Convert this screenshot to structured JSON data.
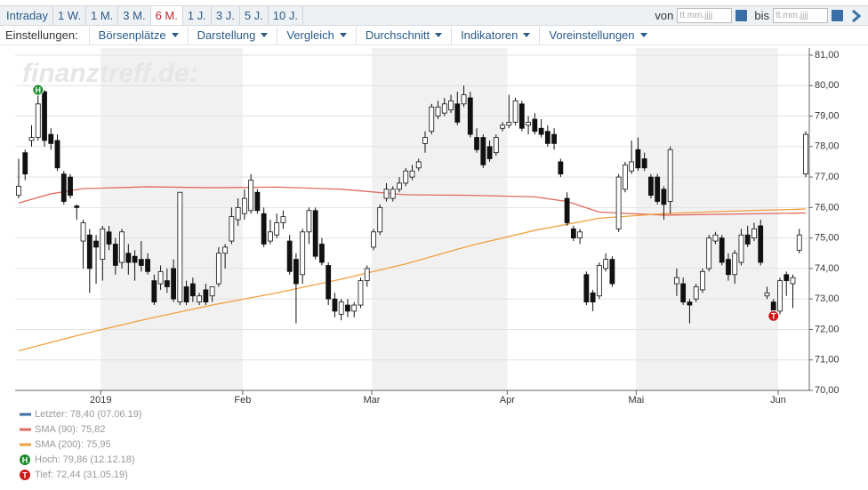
{
  "toolbar": {
    "ranges": [
      "Intraday",
      "1 W.",
      "1 M.",
      "3 M.",
      "6 M.",
      "1 J.",
      "3 J.",
      "5 J.",
      "10 J."
    ],
    "active_range": 4,
    "from_label": "von",
    "to_label": "bis",
    "date_placeholder": "tt.mm.jjjj"
  },
  "menu": {
    "label": "Einstellungen:",
    "items": [
      "Börsenplätze",
      "Darstellung",
      "Vergleich",
      "Durchschnitt",
      "Indikatoren",
      "Voreinstellungen"
    ]
  },
  "chart_data": {
    "type": "candlestick",
    "watermark": "finanztreff.de:",
    "ylim": [
      70,
      81
    ],
    "yticks": [
      {
        "value": 70,
        "label": "70,00"
      },
      {
        "value": 71,
        "label": "71,00"
      },
      {
        "value": 72,
        "label": "72,00"
      },
      {
        "value": 73,
        "label": "73,00"
      },
      {
        "value": 74,
        "label": "74,00"
      },
      {
        "value": 75,
        "label": "75,00"
      },
      {
        "value": 76,
        "label": "76,00"
      },
      {
        "value": 77,
        "label": "77,00"
      },
      {
        "value": 78,
        "label": "78,00"
      },
      {
        "value": 79,
        "label": "79,00"
      },
      {
        "value": 80,
        "label": "80,00"
      },
      {
        "value": 81,
        "label": "81,00"
      }
    ],
    "xlim": [
      0,
      122
    ],
    "xticks": [
      {
        "value": 13,
        "label": "2019"
      },
      {
        "value": 35,
        "label": "Feb"
      },
      {
        "value": 55,
        "label": "Mar"
      },
      {
        "value": 76,
        "label": "Apr"
      },
      {
        "value": 96,
        "label": "Mai"
      },
      {
        "value": 118,
        "label": "Jun"
      }
    ],
    "grid": true,
    "ohlc": [
      [
        76.4,
        77.6,
        76.3,
        76.7
      ],
      [
        77.8,
        77.9,
        76.9,
        77.1
      ],
      [
        78.2,
        78.7,
        78.0,
        78.3
      ],
      [
        78.3,
        79.86,
        78.2,
        79.4
      ],
      [
        79.8,
        79.85,
        78.0,
        78.2
      ],
      [
        78.4,
        78.6,
        77.9,
        78.1
      ],
      [
        78.2,
        78.4,
        77.2,
        77.3
      ],
      [
        77.1,
        77.2,
        76.1,
        76.2
      ],
      [
        77.0,
        77.1,
        76.3,
        76.4
      ],
      [
        76.05,
        76.1,
        75.6,
        76.0
      ],
      [
        74.9,
        75.6,
        74.0,
        75.5
      ],
      [
        75.1,
        75.3,
        73.2,
        74.0
      ],
      [
        74.9,
        75.1,
        73.5,
        74.7
      ],
      [
        74.3,
        75.4,
        73.6,
        75.3
      ],
      [
        75.2,
        75.4,
        74.6,
        74.8
      ],
      [
        74.8,
        75.0,
        73.8,
        74.1
      ],
      [
        74.2,
        75.3,
        74.0,
        75.2
      ],
      [
        74.5,
        74.8,
        73.8,
        74.2
      ],
      [
        74.4,
        74.6,
        73.6,
        74.2
      ],
      [
        74.3,
        74.9,
        73.9,
        74.1
      ],
      [
        74.3,
        74.5,
        73.8,
        73.9
      ],
      [
        73.6,
        73.8,
        72.8,
        72.9
      ],
      [
        73.5,
        74.1,
        73.3,
        73.9
      ],
      [
        73.6,
        74.0,
        73.2,
        73.4
      ],
      [
        74.0,
        74.3,
        72.9,
        73.0
      ],
      [
        72.9,
        76.5,
        72.8,
        76.5
      ],
      [
        73.4,
        73.6,
        72.8,
        72.9
      ],
      [
        73.5,
        73.7,
        72.9,
        73.1
      ],
      [
        72.9,
        73.2,
        72.8,
        73.1
      ],
      [
        73.3,
        73.5,
        72.8,
        72.9
      ],
      [
        73.1,
        73.4,
        72.9,
        73.4
      ],
      [
        73.5,
        74.7,
        73.4,
        74.5
      ],
      [
        74.5,
        74.8,
        74.0,
        74.7
      ],
      [
        74.9,
        76.0,
        74.8,
        75.7
      ],
      [
        75.6,
        76.3,
        75.4,
        76.0
      ],
      [
        75.8,
        76.6,
        75.6,
        76.3
      ],
      [
        75.9,
        77.1,
        75.8,
        76.9
      ],
      [
        76.5,
        76.6,
        75.8,
        75.9
      ],
      [
        75.8,
        76.0,
        74.7,
        74.8
      ],
      [
        74.9,
        75.6,
        74.8,
        75.2
      ],
      [
        75.1,
        75.8,
        75.0,
        75.5
      ],
      [
        75.5,
        75.9,
        75.3,
        75.7
      ],
      [
        74.9,
        75.1,
        73.8,
        73.9
      ],
      [
        74.3,
        74.5,
        72.2,
        73.5
      ],
      [
        73.8,
        75.3,
        73.5,
        75.2
      ],
      [
        75.2,
        76.0,
        74.8,
        75.9
      ],
      [
        75.9,
        76.0,
        74.3,
        74.4
      ],
      [
        74.8,
        75.0,
        74.1,
        74.2
      ],
      [
        74.1,
        74.2,
        72.8,
        73.0
      ],
      [
        73.0,
        73.2,
        72.4,
        72.6
      ],
      [
        72.5,
        73.0,
        72.3,
        72.9
      ],
      [
        72.8,
        73.0,
        72.4,
        72.6
      ],
      [
        72.6,
        72.9,
        72.4,
        72.8
      ],
      [
        72.8,
        73.7,
        72.7,
        73.6
      ],
      [
        73.6,
        74.1,
        73.4,
        74.0
      ],
      [
        74.7,
        75.3,
        74.6,
        75.2
      ],
      [
        75.2,
        76.1,
        75.1,
        76.0
      ],
      [
        76.3,
        76.8,
        76.2,
        76.6
      ],
      [
        76.3,
        76.7,
        76.2,
        76.6
      ],
      [
        76.6,
        77.0,
        76.5,
        76.8
      ],
      [
        76.8,
        77.3,
        76.7,
        77.2
      ],
      [
        77.0,
        77.4,
        76.9,
        77.2
      ],
      [
        77.3,
        77.6,
        77.2,
        77.5
      ],
      [
        78.1,
        78.5,
        77.8,
        78.3
      ],
      [
        78.5,
        79.4,
        78.4,
        79.3
      ],
      [
        79.0,
        79.5,
        78.9,
        79.3
      ],
      [
        79.1,
        79.6,
        79.0,
        79.4
      ],
      [
        79.2,
        79.7,
        79.1,
        79.5
      ],
      [
        79.4,
        79.8,
        78.7,
        78.8
      ],
      [
        79.4,
        80.0,
        79.3,
        79.7
      ],
      [
        79.6,
        79.8,
        78.3,
        78.4
      ],
      [
        78.3,
        78.6,
        77.8,
        77.9
      ],
      [
        78.3,
        78.4,
        77.3,
        77.4
      ],
      [
        78.0,
        78.2,
        77.5,
        77.6
      ],
      [
        77.8,
        78.4,
        77.7,
        78.3
      ],
      [
        78.6,
        78.8,
        78.5,
        78.7
      ],
      [
        78.7,
        79.7,
        78.6,
        78.8
      ],
      [
        78.8,
        79.6,
        78.7,
        79.5
      ],
      [
        79.4,
        79.5,
        78.5,
        78.6
      ],
      [
        78.7,
        79.0,
        78.4,
        78.8
      ],
      [
        78.9,
        79.1,
        78.4,
        78.5
      ],
      [
        78.6,
        78.9,
        78.3,
        78.4
      ],
      [
        78.5,
        78.7,
        78.0,
        78.1
      ],
      [
        78.4,
        78.6,
        77.9,
        78.1
      ],
      [
        77.5,
        77.6,
        77.0,
        77.1
      ],
      [
        76.3,
        76.5,
        75.4,
        75.5
      ],
      [
        75.3,
        75.4,
        74.9,
        75.0
      ],
      [
        75.0,
        75.3,
        74.8,
        75.2
      ],
      [
        73.8,
        73.9,
        72.8,
        72.9
      ],
      [
        73.2,
        73.3,
        72.6,
        72.9
      ],
      [
        73.1,
        74.2,
        73.0,
        74.1
      ],
      [
        74.0,
        74.5,
        73.9,
        74.3
      ],
      [
        74.3,
        74.4,
        73.4,
        73.5
      ],
      [
        75.3,
        77.1,
        75.2,
        77.0
      ],
      [
        76.6,
        77.5,
        76.5,
        77.4
      ],
      [
        77.2,
        78.2,
        77.1,
        77.5
      ],
      [
        77.9,
        78.3,
        77.2,
        77.3
      ],
      [
        77.6,
        77.8,
        77.2,
        77.3
      ],
      [
        77.0,
        77.1,
        76.3,
        76.4
      ],
      [
        77.0,
        77.1,
        76.1,
        76.2
      ],
      [
        76.6,
        76.7,
        75.6,
        76.1
      ],
      [
        76.2,
        78.0,
        75.8,
        77.9
      ],
      [
        73.5,
        74.0,
        73.1,
        73.7
      ],
      [
        73.5,
        73.7,
        72.8,
        72.9
      ],
      [
        72.9,
        73.0,
        72.2,
        72.8
      ],
      [
        73.0,
        73.5,
        72.9,
        73.4
      ],
      [
        73.3,
        74.0,
        73.2,
        73.9
      ],
      [
        74.0,
        75.1,
        73.9,
        75.0
      ],
      [
        74.9,
        75.2,
        74.8,
        75.1
      ],
      [
        75.0,
        75.1,
        74.1,
        74.2
      ],
      [
        74.3,
        74.5,
        73.6,
        73.8
      ],
      [
        73.8,
        74.6,
        73.5,
        74.5
      ],
      [
        74.2,
        75.3,
        74.1,
        75.1
      ],
      [
        75.1,
        75.4,
        74.7,
        74.8
      ],
      [
        75.0,
        75.5,
        74.9,
        75.3
      ],
      [
        75.4,
        75.6,
        74.1,
        74.2
      ],
      [
        73.1,
        73.4,
        73.0,
        73.2
      ],
      [
        72.9,
        73.0,
        72.44,
        72.6
      ],
      [
        72.6,
        73.7,
        72.5,
        73.6
      ],
      [
        73.8,
        73.9,
        73.1,
        73.6
      ],
      [
        73.5,
        73.8,
        72.7,
        73.7
      ],
      [
        74.6,
        75.3,
        74.5,
        75.1
      ],
      [
        77.1,
        78.5,
        77.0,
        78.4
      ]
    ],
    "series": [
      {
        "color": "#e06a60",
        "x": [
          0,
          5,
          10,
          20,
          30,
          40,
          50,
          60,
          70,
          80,
          85,
          90,
          100,
          110,
          122
        ],
        "values": [
          76.15,
          76.45,
          76.62,
          76.68,
          76.65,
          76.67,
          76.6,
          76.42,
          76.4,
          76.35,
          76.2,
          75.85,
          75.75,
          75.78,
          75.82
        ]
      },
      {
        "color": "#f0a040",
        "x": [
          0,
          10,
          20,
          30,
          40,
          50,
          60,
          70,
          80,
          90,
          100,
          110,
          122
        ],
        "values": [
          71.3,
          71.85,
          72.35,
          72.8,
          73.2,
          73.65,
          74.15,
          74.75,
          75.25,
          75.65,
          75.8,
          75.88,
          75.95
        ]
      }
    ],
    "markers": [
      {
        "label": "H",
        "x": 3,
        "value": 79.86,
        "color": "#1e8a2e"
      },
      {
        "label": "T",
        "x": 117,
        "value": 72.44,
        "color": "#d01818"
      }
    ],
    "legend": [
      {
        "text": "Letzter: 78,40 (07.06.19)",
        "color": "#3a6ea5"
      },
      {
        "text": "SMA (90): 75,82",
        "color": "#e06a60"
      },
      {
        "text": "SMA (200): 75,95",
        "color": "#f0a040"
      },
      {
        "text": "Hoch: 79,86 (12.12.18)",
        "icon": "H",
        "color": "#1e8a2e"
      },
      {
        "text": "Tief: 72,44 (31.05.19)",
        "icon": "T",
        "color": "#d01818"
      }
    ]
  }
}
